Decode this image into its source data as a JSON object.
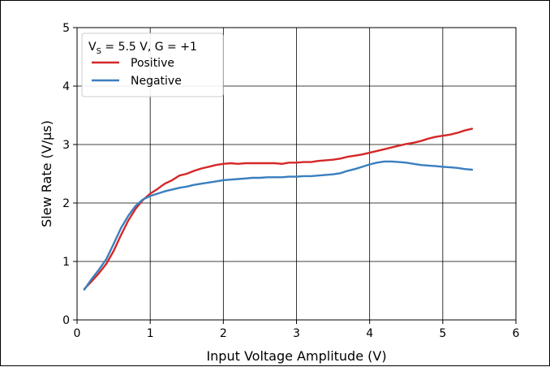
{
  "chart_data": {
    "type": "line",
    "title": "",
    "xlabel": "Input Voltage Amplitude (V)",
    "ylabel": "Slew Rate (V/µs)",
    "xlim": [
      0,
      6
    ],
    "ylim": [
      0,
      5
    ],
    "xticks": [
      0,
      1,
      2,
      3,
      4,
      5,
      6
    ],
    "yticks": [
      0,
      1,
      2,
      3,
      4,
      5
    ],
    "grid": true,
    "legend": {
      "placement": "top-left",
      "title_main": "V",
      "title_sub": "S",
      "title_rest": " = 5.5 V,  G = +1"
    },
    "series": [
      {
        "name": "Positive",
        "color": "#d62728",
        "x": [
          0.1,
          0.2,
          0.3,
          0.4,
          0.5,
          0.6,
          0.7,
          0.8,
          0.9,
          1.0,
          1.1,
          1.2,
          1.3,
          1.4,
          1.5,
          1.6,
          1.7,
          1.8,
          1.9,
          2.0,
          2.1,
          2.2,
          2.3,
          2.4,
          2.5,
          2.6,
          2.7,
          2.8,
          2.9,
          3.0,
          3.1,
          3.2,
          3.3,
          3.4,
          3.5,
          3.6,
          3.7,
          3.8,
          3.9,
          4.0,
          4.1,
          4.2,
          4.3,
          4.4,
          4.5,
          4.6,
          4.7,
          4.8,
          4.9,
          5.0,
          5.1,
          5.2,
          5.3,
          5.4
        ],
        "y": [
          0.53,
          0.66,
          0.8,
          0.96,
          1.18,
          1.45,
          1.7,
          1.9,
          2.05,
          2.16,
          2.24,
          2.33,
          2.39,
          2.47,
          2.5,
          2.55,
          2.59,
          2.62,
          2.65,
          2.67,
          2.68,
          2.67,
          2.68,
          2.68,
          2.68,
          2.68,
          2.68,
          2.67,
          2.69,
          2.69,
          2.7,
          2.7,
          2.72,
          2.73,
          2.74,
          2.76,
          2.79,
          2.81,
          2.83,
          2.86,
          2.89,
          2.92,
          2.95,
          2.98,
          3.01,
          3.03,
          3.06,
          3.1,
          3.13,
          3.15,
          3.17,
          3.2,
          3.24,
          3.27
        ]
      },
      {
        "name": "Negative",
        "color": "#3a7ebf",
        "x": [
          0.1,
          0.2,
          0.3,
          0.4,
          0.5,
          0.6,
          0.7,
          0.8,
          0.9,
          1.0,
          1.1,
          1.2,
          1.3,
          1.4,
          1.5,
          1.6,
          1.7,
          1.8,
          1.9,
          2.0,
          2.1,
          2.2,
          2.3,
          2.4,
          2.5,
          2.6,
          2.7,
          2.8,
          2.9,
          3.0,
          3.1,
          3.2,
          3.3,
          3.4,
          3.5,
          3.6,
          3.7,
          3.8,
          3.9,
          4.0,
          4.1,
          4.2,
          4.3,
          4.4,
          4.5,
          4.6,
          4.7,
          4.8,
          4.9,
          5.0,
          5.1,
          5.2,
          5.3,
          5.4
        ],
        "y": [
          0.52,
          0.7,
          0.86,
          1.04,
          1.3,
          1.57,
          1.78,
          1.95,
          2.06,
          2.12,
          2.16,
          2.2,
          2.23,
          2.26,
          2.28,
          2.31,
          2.33,
          2.35,
          2.37,
          2.39,
          2.4,
          2.41,
          2.42,
          2.43,
          2.43,
          2.44,
          2.44,
          2.44,
          2.45,
          2.45,
          2.46,
          2.46,
          2.47,
          2.48,
          2.49,
          2.51,
          2.55,
          2.58,
          2.62,
          2.66,
          2.69,
          2.71,
          2.71,
          2.7,
          2.69,
          2.67,
          2.65,
          2.64,
          2.63,
          2.62,
          2.61,
          2.6,
          2.58,
          2.57
        ]
      }
    ]
  }
}
